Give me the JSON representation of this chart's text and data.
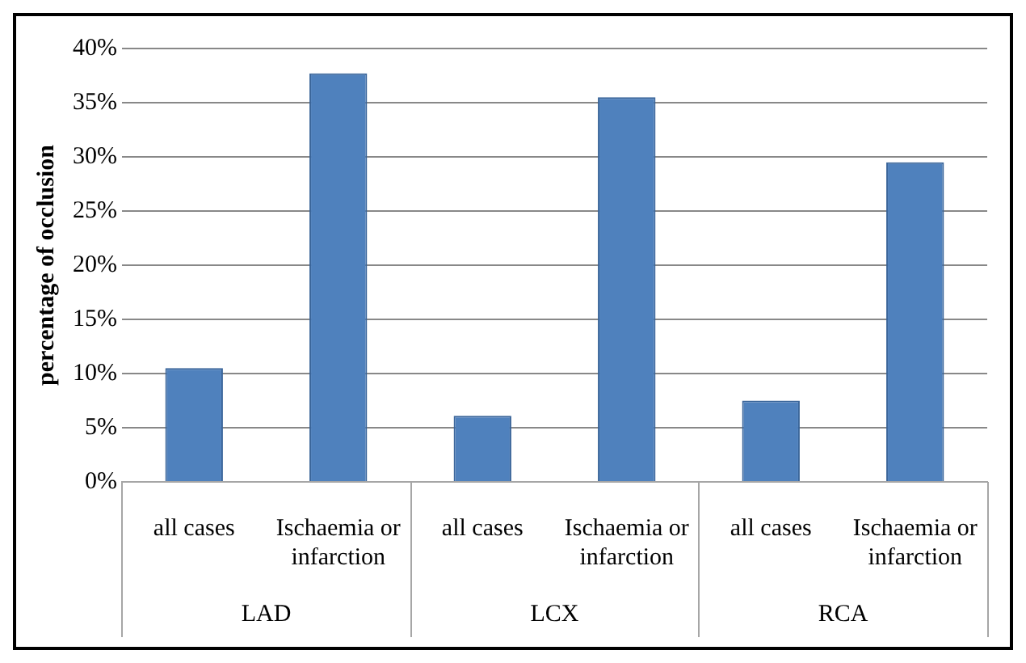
{
  "chart_data": {
    "type": "bar",
    "ylabel": "percentage of occlusion",
    "categories": [
      "all cases",
      "Ischaemia or infarction",
      "all cases",
      "Ischaemia or infarction",
      "all cases",
      "Ischaemia or infarction"
    ],
    "values": [
      10.5,
      37.7,
      6.1,
      35.5,
      7.5,
      29.5
    ],
    "color": "#4f81bd",
    "annotations": [
      "LAD",
      "LCX",
      "RCA"
    ],
    "ylim": [
      0,
      40
    ],
    "yticks": [
      {
        "value": 0,
        "label": "0%"
      },
      {
        "value": 5,
        "label": "5%"
      },
      {
        "value": 10,
        "label": "10%"
      },
      {
        "value": 15,
        "label": "15%"
      },
      {
        "value": 20,
        "label": "20%"
      },
      {
        "value": 25,
        "label": "25%"
      },
      {
        "value": 30,
        "label": "30%"
      },
      {
        "value": 35,
        "label": "35%"
      },
      {
        "value": 40,
        "label": "40%"
      }
    ],
    "grid": "y",
    "legend": false
  }
}
